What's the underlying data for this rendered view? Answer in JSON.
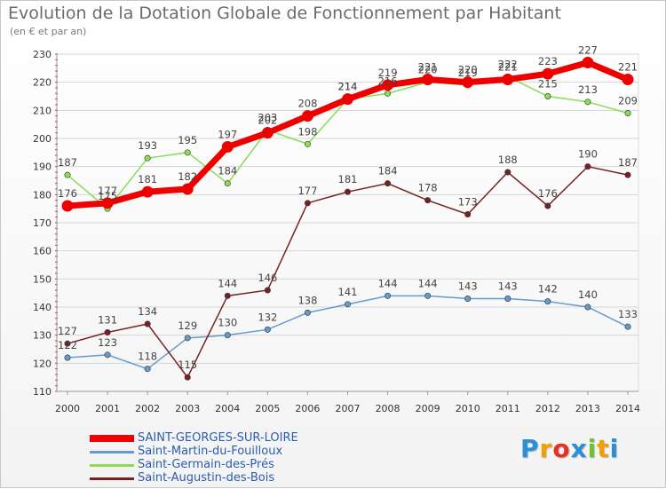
{
  "chart_data": {
    "type": "line",
    "title": "Evolution de la Dotation Globale de Fonctionnement par Habitant",
    "subtitle": "(en € et par an)",
    "xlabel": "",
    "ylabel": "",
    "ylim": [
      110,
      230
    ],
    "yticks": [
      110,
      120,
      130,
      140,
      150,
      160,
      170,
      180,
      190,
      200,
      210,
      220,
      230
    ],
    "grid": true,
    "x": [
      "2000",
      "2001",
      "2002",
      "2003",
      "2004",
      "2005",
      "2006",
      "2007",
      "2008",
      "2009",
      "2010",
      "2011",
      "2012",
      "2013",
      "2014"
    ],
    "series": [
      {
        "name": "SAINT-GEORGES-SUR-LOIRE",
        "color": "#ee0000",
        "highlight": true,
        "values": [
          176,
          177,
          181,
          182,
          197,
          202,
          208,
          214,
          219,
          221,
          220,
          221,
          223,
          227,
          221
        ]
      },
      {
        "name": "Saint-Martin-du-Fouilloux",
        "color": "#6699cc",
        "highlight": false,
        "values": [
          122,
          123,
          118,
          129,
          130,
          132,
          138,
          141,
          144,
          144,
          143,
          143,
          142,
          140,
          133
        ]
      },
      {
        "name": "Saint-Germain-des-Prés",
        "color": "#88dd55",
        "highlight": false,
        "values": [
          187,
          175,
          193,
          195,
          184,
          203,
          198,
          214,
          216,
          220,
          219,
          222,
          215,
          213,
          209
        ]
      },
      {
        "name": "Saint-Augustin-des-Bois",
        "color": "#772222",
        "highlight": false,
        "values": [
          127,
          131,
          134,
          115,
          144,
          146,
          177,
          181,
          184,
          178,
          173,
          188,
          176,
          190,
          187
        ]
      }
    ]
  },
  "logo": {
    "letters": [
      "P",
      "r",
      "o",
      "x",
      "i",
      "t",
      "i"
    ],
    "colors": [
      "#2b8fd6",
      "#f0a000",
      "#e63222",
      "#2b8fd6",
      "#70c030",
      "#f0a000",
      "#2b8fd6"
    ]
  }
}
